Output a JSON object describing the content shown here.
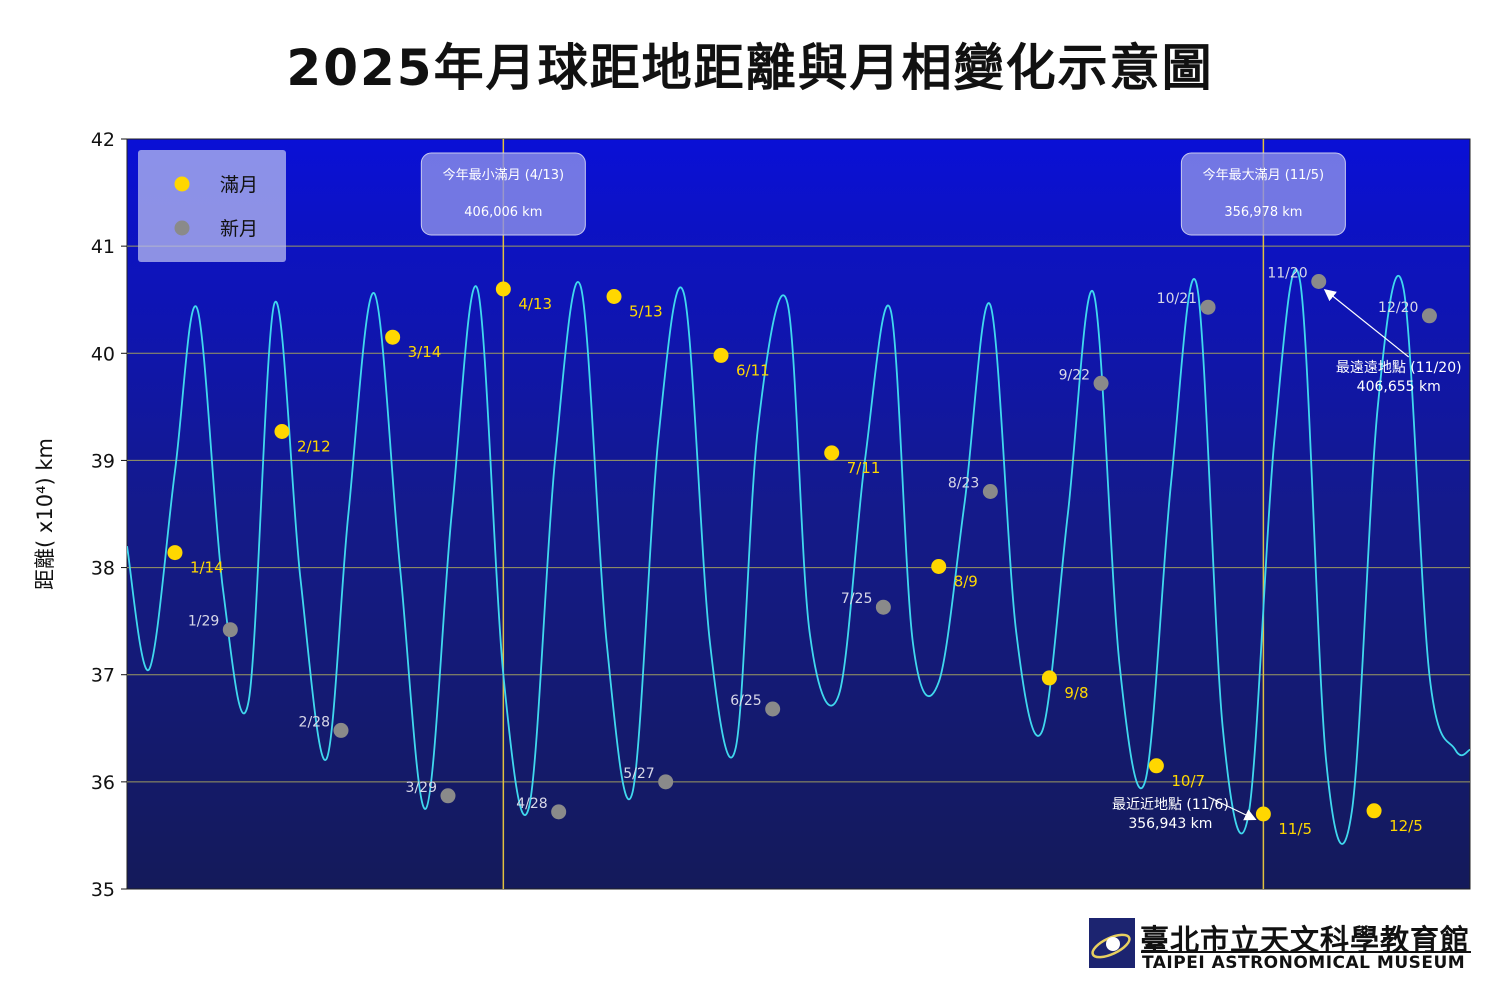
{
  "title": "2025年月球距地距離與月相變化示意圖",
  "colors": {
    "plot_top": "#0a10d6",
    "plot_bottom": "#141a5a",
    "curve": "#40d8ee",
    "full_moon": "#ffd700",
    "new_moon": "#8a8a8a",
    "grid": "#9c9a60",
    "vline": "#e0c040",
    "full_label": "#ffd700",
    "new_label": "#d8d8e8"
  },
  "chart_data": {
    "type": "line",
    "title": "2025年月球距地距離與月相變化示意圖",
    "ylabel": "距離( x10⁴) km",
    "ylim": [
      35,
      42
    ],
    "yticks": [
      "35",
      "36",
      "37",
      "38",
      "39",
      "40",
      "41",
      "42"
    ],
    "grid": true,
    "legend_position": "top-left",
    "legend": [
      {
        "label": "滿月",
        "kind": "full"
      },
      {
        "label": "新月",
        "kind": "new"
      }
    ],
    "x_domain": [
      1,
      365
    ],
    "curve": {
      "name": "月地距離",
      "x_day": [
        1,
        7,
        14,
        20,
        27,
        34,
        41,
        48,
        55,
        61,
        68,
        75,
        82,
        89,
        96,
        103,
        110,
        117,
        124,
        131,
        138,
        145,
        152,
        159,
        166,
        172,
        180,
        186,
        194,
        201,
        208,
        214,
        221,
        228,
        235,
        242,
        249,
        256,
        263,
        270,
        277,
        284,
        291,
        298,
        305,
        312,
        319,
        326,
        333,
        340,
        347,
        354,
        361,
        365
      ],
      "y": [
        38.2,
        37.05,
        38.9,
        40.42,
        37.8,
        36.76,
        40.47,
        37.9,
        36.21,
        38.5,
        40.56,
        38.0,
        35.75,
        38.5,
        40.6,
        37.0,
        35.77,
        39.0,
        40.62,
        37.3,
        35.9,
        39.2,
        40.55,
        37.3,
        36.32,
        39.3,
        40.47,
        37.4,
        36.82,
        39.0,
        40.4,
        37.3,
        36.93,
        38.6,
        40.45,
        37.4,
        36.47,
        38.5,
        40.56,
        37.1,
        36.01,
        38.8,
        40.63,
        36.5,
        35.7,
        39.2,
        40.66,
        36.2,
        35.73,
        39.5,
        40.6,
        37.0,
        36.3,
        36.3
      ]
    },
    "full_moons": [
      {
        "label": "1/14",
        "x_day": 14,
        "y": 38.14
      },
      {
        "label": "2/12",
        "x_day": 43,
        "y": 39.27
      },
      {
        "label": "3/14",
        "x_day": 73,
        "y": 40.15
      },
      {
        "label": "4/13",
        "x_day": 103,
        "y": 40.6
      },
      {
        "label": "5/13",
        "x_day": 133,
        "y": 40.53
      },
      {
        "label": "6/11",
        "x_day": 162,
        "y": 39.98
      },
      {
        "label": "7/11",
        "x_day": 192,
        "y": 39.07
      },
      {
        "label": "8/9",
        "x_day": 221,
        "y": 38.01
      },
      {
        "label": "9/8",
        "x_day": 251,
        "y": 36.97
      },
      {
        "label": "10/7",
        "x_day": 280,
        "y": 36.15
      },
      {
        "label": "11/5",
        "x_day": 309,
        "y": 35.7
      },
      {
        "label": "12/5",
        "x_day": 339,
        "y": 35.73
      }
    ],
    "new_moons": [
      {
        "label": "1/29",
        "x_day": 29,
        "y": 37.42
      },
      {
        "label": "2/28",
        "x_day": 59,
        "y": 36.48
      },
      {
        "label": "3/29",
        "x_day": 88,
        "y": 35.87
      },
      {
        "label": "4/28",
        "x_day": 118,
        "y": 35.72
      },
      {
        "label": "5/27",
        "x_day": 147,
        "y": 36.0
      },
      {
        "label": "6/25",
        "x_day": 176,
        "y": 36.68
      },
      {
        "label": "7/25",
        "x_day": 206,
        "y": 37.63
      },
      {
        "label": "8/23",
        "x_day": 235,
        "y": 38.71
      },
      {
        "label": "9/22",
        "x_day": 265,
        "y": 39.72
      },
      {
        "label": "10/21",
        "x_day": 294,
        "y": 40.43
      },
      {
        "label": "11/20",
        "x_day": 324,
        "y": 40.67
      },
      {
        "label": "12/20",
        "x_day": 354,
        "y": 40.35
      }
    ],
    "vertical_markers": [
      {
        "x_day": 103,
        "box_line1": "今年最小滿月 (4/13)",
        "box_line2": "406,006 km"
      },
      {
        "x_day": 309,
        "box_line1": "今年最大滿月 (11/5)",
        "box_line2": "356,978 km"
      }
    ],
    "annotations": [
      {
        "line1": "最近近地點 (11/6)",
        "line2": "356,943 km",
        "x_day": 309,
        "y": 35.7
      },
      {
        "line1": "最遠遠地點 (11/20)",
        "line2": "406,655 km",
        "x_day": 324,
        "y": 40.67
      }
    ]
  },
  "logo": {
    "name_zh": "臺北市立天文科學教育館",
    "name_en": "TAIPEI ASTRONOMICAL MUSEUM"
  }
}
